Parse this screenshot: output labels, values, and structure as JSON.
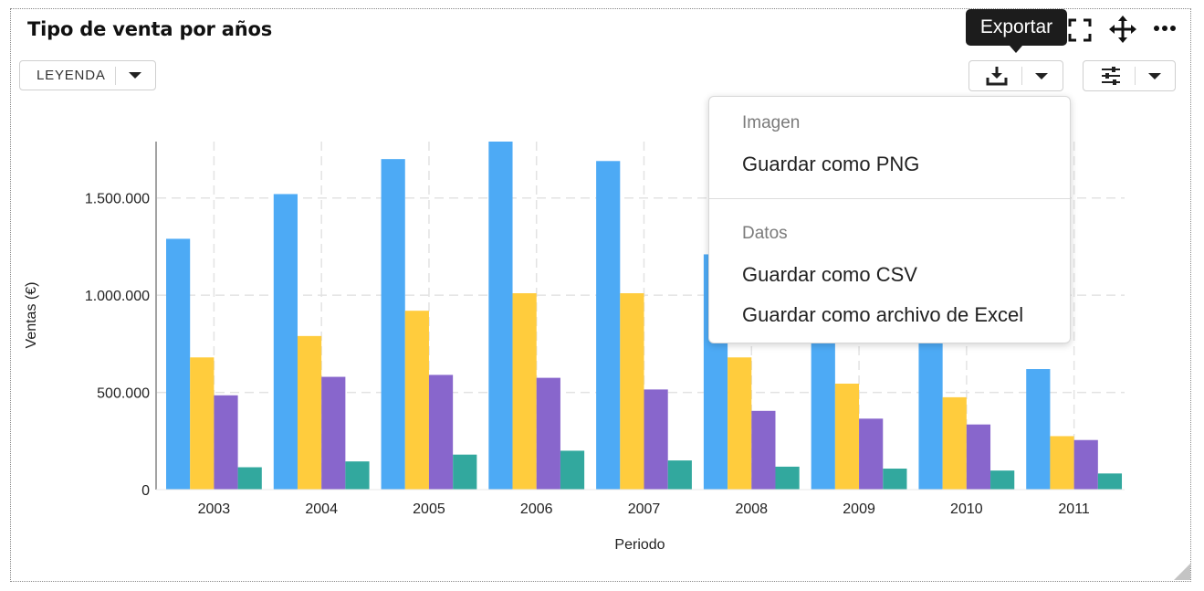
{
  "widget": {
    "title": "Tipo de venta por años",
    "legend_button_label": "LEYENDA",
    "tooltip": "Exportar"
  },
  "toolbar": {
    "icons": [
      "fullscreen-icon",
      "move-icon",
      "more-icon",
      "download-icon",
      "sliders-icon",
      "chevron-down-icon"
    ]
  },
  "export_menu": {
    "image_header": "Imagen",
    "png_label": "Guardar como PNG",
    "data_header": "Datos",
    "csv_label": "Guardar como CSV",
    "excel_label": "Guardar como archivo de Excel"
  },
  "chart_data": {
    "type": "bar",
    "title": "",
    "xlabel": "Periodo",
    "ylabel": "Ventas (€)",
    "categories": [
      "2003",
      "2004",
      "2005",
      "2006",
      "2007",
      "2008",
      "2009",
      "2010",
      "2011"
    ],
    "series": [
      {
        "color": "#4daaf5",
        "values": [
          1290000,
          1520000,
          1700000,
          1790000,
          1690000,
          1210000,
          900000,
          880000,
          620000
        ]
      },
      {
        "color": "#ffcc3d",
        "values": [
          680000,
          790000,
          920000,
          1010000,
          1010000,
          680000,
          545000,
          475000,
          275000
        ]
      },
      {
        "color": "#8866cc",
        "values": [
          485000,
          580000,
          590000,
          575000,
          515000,
          405000,
          365000,
          335000,
          255000
        ]
      },
      {
        "color": "#32a89e",
        "values": [
          115000,
          145000,
          180000,
          200000,
          150000,
          118000,
          108000,
          98000,
          83000
        ]
      }
    ],
    "ylim": [
      0,
      1790000
    ],
    "yticks": [
      0,
      500000,
      1000000,
      1500000
    ],
    "ytick_labels": [
      "0",
      "500.000",
      "1.000.000",
      "1.500.000"
    ],
    "grid": true,
    "legend": "none"
  }
}
